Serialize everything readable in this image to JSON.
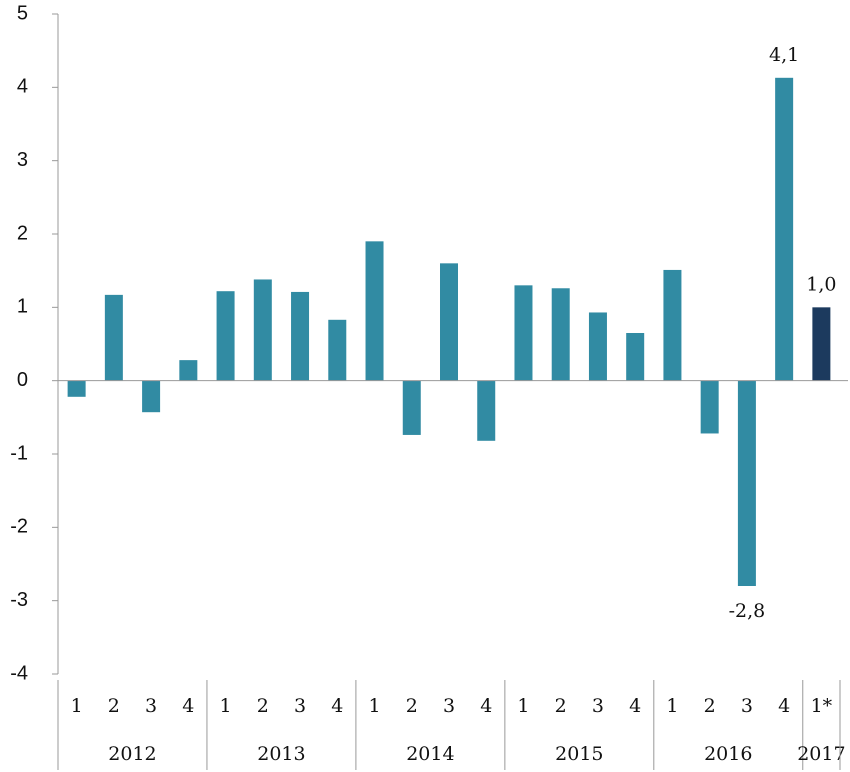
{
  "chart_data": {
    "type": "bar",
    "groups": [
      {
        "name": "2012",
        "categories": [
          "1",
          "2",
          "3",
          "4"
        ]
      },
      {
        "name": "2013",
        "categories": [
          "1",
          "2",
          "3",
          "4"
        ]
      },
      {
        "name": "2014",
        "categories": [
          "1",
          "2",
          "3",
          "4"
        ]
      },
      {
        "name": "2015",
        "categories": [
          "1",
          "2",
          "3",
          "4"
        ]
      },
      {
        "name": "2016",
        "categories": [
          "1",
          "2",
          "3",
          "4"
        ]
      },
      {
        "name": "2017",
        "categories": [
          "1*"
        ]
      }
    ],
    "values": [
      -0.22,
      1.17,
      -0.43,
      0.28,
      1.22,
      1.38,
      1.21,
      0.83,
      1.9,
      -0.74,
      1.6,
      -0.82,
      1.3,
      1.26,
      0.93,
      0.65,
      1.51,
      -0.72,
      -2.8,
      4.13,
      1.0
    ],
    "value_labels": [
      null,
      null,
      null,
      null,
      null,
      null,
      null,
      null,
      null,
      null,
      null,
      null,
      null,
      null,
      null,
      null,
      null,
      null,
      "-2,8",
      "4,1",
      "1,0"
    ],
    "colors": [
      "#318ba3",
      "#318ba3",
      "#318ba3",
      "#318ba3",
      "#318ba3",
      "#318ba3",
      "#318ba3",
      "#318ba3",
      "#318ba3",
      "#318ba3",
      "#318ba3",
      "#318ba3",
      "#318ba3",
      "#318ba3",
      "#318ba3",
      "#318ba3",
      "#318ba3",
      "#318ba3",
      "#318ba3",
      "#318ba3",
      "#1c3a5e"
    ],
    "ylim": [
      -4,
      5
    ],
    "yticks": [
      -4,
      -3,
      -2,
      -1,
      0,
      1,
      2,
      3,
      4,
      5
    ]
  }
}
